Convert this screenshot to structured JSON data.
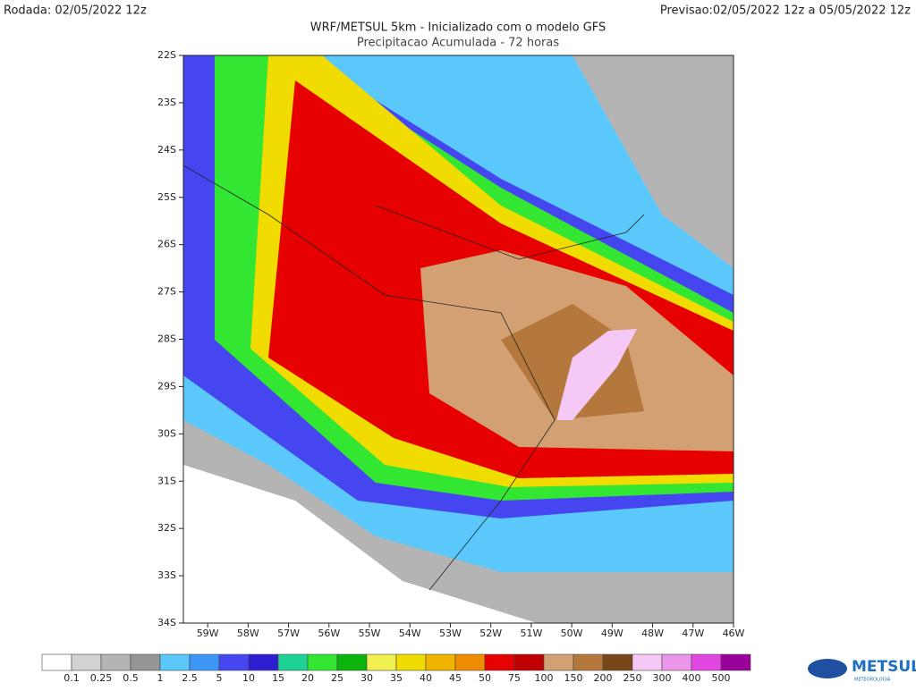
{
  "header": {
    "run": "Rodada: 02/05/2022 12z",
    "forecast": "Previsao:02/05/2022 12z a 05/05/2022 12z",
    "title": "WRF/METSUL 5km - Inicializado com o modelo GFS",
    "subtitle": "Precipitacao Acumulada - 72 horas"
  },
  "map": {
    "xlim": [
      -59.6,
      -46
    ],
    "ylim": [
      -34,
      -22
    ],
    "lat_ticks": [
      {
        "value": -22,
        "label": "22S"
      },
      {
        "value": -23,
        "label": "23S"
      },
      {
        "value": -24,
        "label": "24S"
      },
      {
        "value": -25,
        "label": "25S"
      },
      {
        "value": -26,
        "label": "26S"
      },
      {
        "value": -27,
        "label": "27S"
      },
      {
        "value": -28,
        "label": "28S"
      },
      {
        "value": -29,
        "label": "29S"
      },
      {
        "value": -30,
        "label": "30S"
      },
      {
        "value": -31,
        "label": "31S"
      },
      {
        "value": -32,
        "label": "32S"
      },
      {
        "value": -33,
        "label": "33S"
      },
      {
        "value": -34,
        "label": "34S"
      }
    ],
    "lon_ticks": [
      {
        "value": -59,
        "label": "59W"
      },
      {
        "value": -58,
        "label": "58W"
      },
      {
        "value": -57,
        "label": "57W"
      },
      {
        "value": -56,
        "label": "56W"
      },
      {
        "value": -55,
        "label": "55W"
      },
      {
        "value": -54,
        "label": "54W"
      },
      {
        "value": -53,
        "label": "53W"
      },
      {
        "value": -52,
        "label": "52W"
      },
      {
        "value": -51,
        "label": "51W"
      },
      {
        "value": -50,
        "label": "50W"
      },
      {
        "value": -49,
        "label": "49W"
      },
      {
        "value": -48,
        "label": "48W"
      },
      {
        "value": -47,
        "label": "47W"
      },
      {
        "value": -46,
        "label": "46W"
      }
    ]
  },
  "colorbar": {
    "labels": [
      0.1,
      0.25,
      0.5,
      1,
      2.5,
      5,
      10,
      15,
      20,
      25,
      30,
      35,
      40,
      45,
      50,
      75,
      100,
      150,
      200,
      250,
      300,
      400,
      500
    ],
    "colors": [
      "#ffffff",
      "#d2d2d2",
      "#b4b4b4",
      "#969696",
      "#5ac8fa",
      "#3c96f5",
      "#4646f0",
      "#2d1ed2",
      "#1ed296",
      "#32e632",
      "#0ab40a",
      "#f0f050",
      "#f0dc00",
      "#f0b400",
      "#f08c00",
      "#e60000",
      "#c00000",
      "#d2a073",
      "#b4783c",
      "#784619",
      "#f5c8f5",
      "#eb96eb",
      "#e146e1",
      "#9b009b"
    ]
  },
  "logo": {
    "name": "METSUL",
    "tagline": "METEOROLOGIA"
  }
}
